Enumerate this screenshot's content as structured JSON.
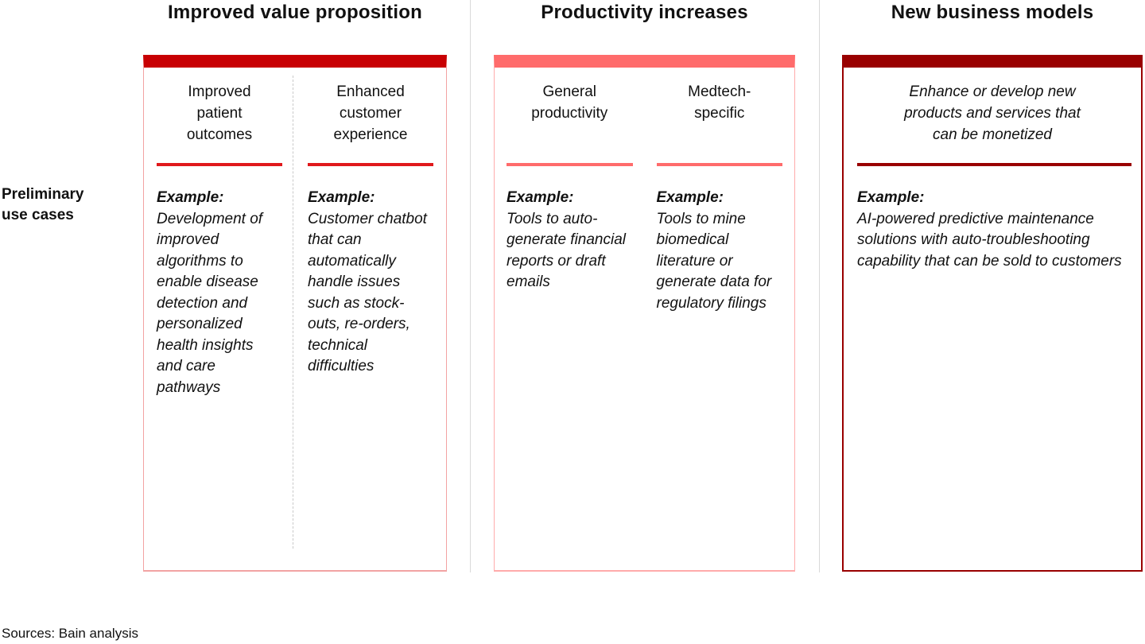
{
  "figure": {
    "row_label": "Preliminary use cases",
    "footer": {
      "sources": "Sources: Bain analysis"
    },
    "columns": [
      {
        "title": "Improved value proposition",
        "theme": {
          "bar": "#C80003",
          "border": "#F2A3A3",
          "underline": "#E0191C"
        },
        "cells": [
          {
            "header": "Improved patient outcomes",
            "example_label": "Example:",
            "text": "Development of improved algorithms to enable disease detection and personalized health insights and care pathways"
          },
          {
            "header": "Enhanced customer experience",
            "example_label": "Example:",
            "text": "Customer chatbot that can automatically handle issues such as stock-outs, re-orders, technical difficulties"
          }
        ]
      },
      {
        "title": "Productivity increases",
        "theme": {
          "bar": "#FF6B6B",
          "border": "#FFABAB",
          "underline": "#FF6B6B"
        },
        "cells": [
          {
            "header": "General productivity",
            "example_label": "Example:",
            "text": "Tools to auto-generate financial reports or draft emails"
          },
          {
            "header": "Medtech-specific",
            "example_label": "Example:",
            "text": "Tools to mine biomedical literature or generate data for regulatory filings"
          }
        ]
      },
      {
        "title": "New business models",
        "theme": {
          "bar": "#990000",
          "border": "#990000",
          "underline": "#990000"
        },
        "cells": [
          {
            "header": "Enhance or develop new products and services that can be monetized",
            "example_label": "Example:",
            "text": "AI-powered predictive maintenance solutions with auto-troubleshooting capability that can be sold to customers"
          }
        ]
      }
    ]
  }
}
